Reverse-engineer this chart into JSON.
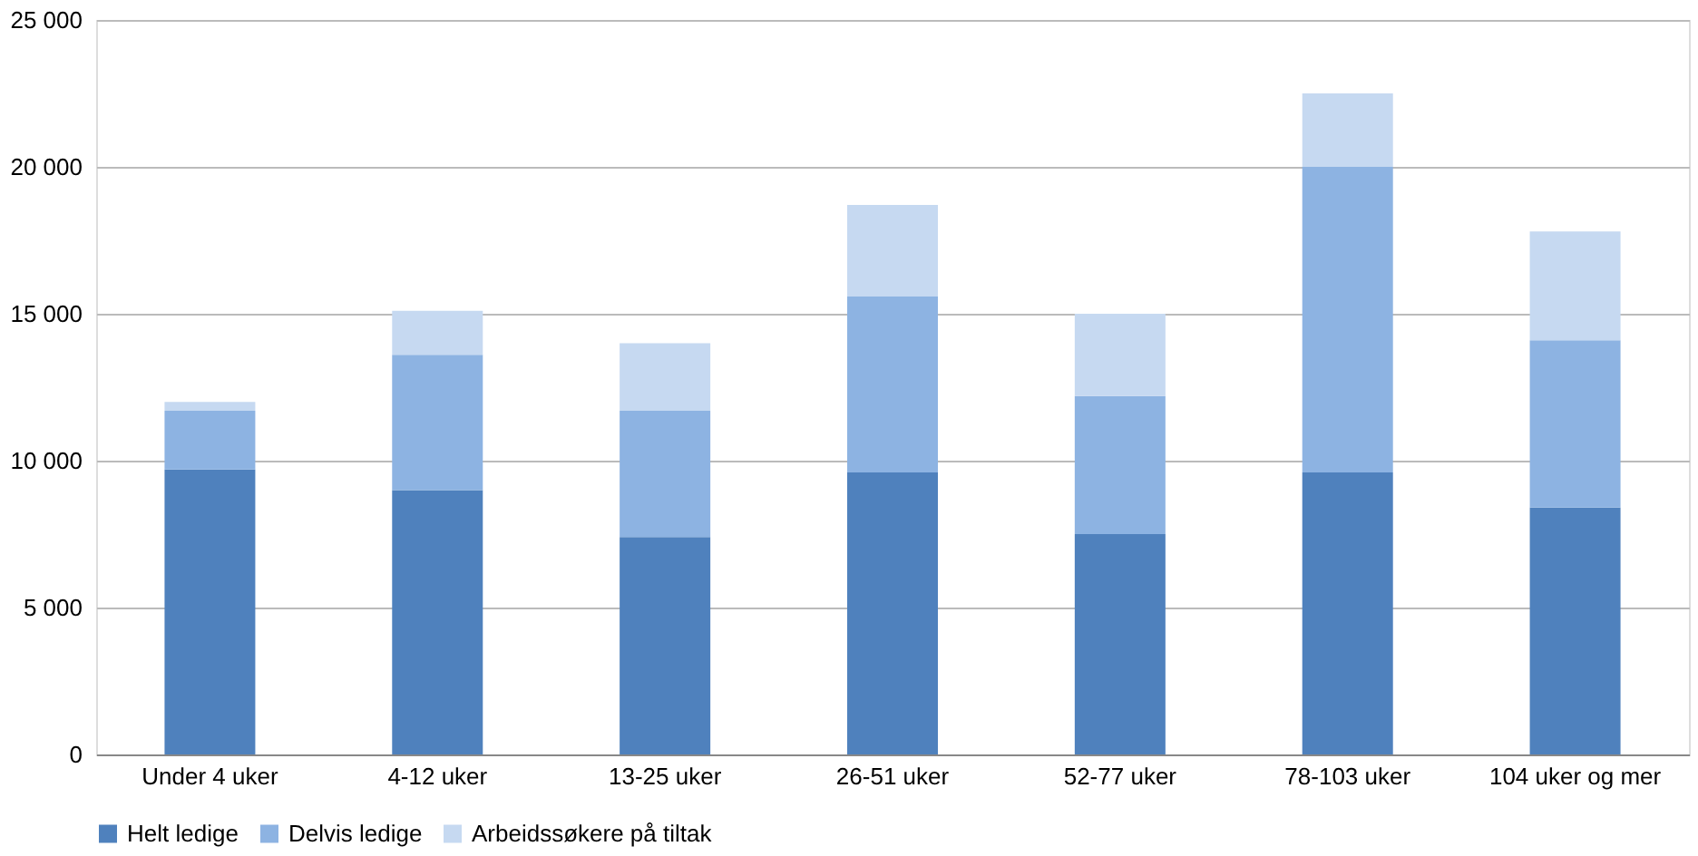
{
  "chart_data": {
    "type": "bar",
    "stacked": true,
    "categories": [
      "Under 4 uker",
      "4-12 uker",
      "13-25 uker",
      "26-51 uker",
      "52-77 uker",
      "78-103 uker",
      "104 uker og mer"
    ],
    "series": [
      {
        "name": "Helt ledige",
        "color": "#4f81bd",
        "values": [
          9700,
          9000,
          7400,
          9600,
          7500,
          9600,
          8400
        ]
      },
      {
        "name": "Delvis ledige",
        "color": "#8db3e2",
        "values": [
          2000,
          4600,
          4300,
          6000,
          4700,
          10400,
          5700
        ]
      },
      {
        "name": "Arbeidssøkere på tiltak",
        "color": "#c6d9f1",
        "values": [
          300,
          1500,
          2300,
          3100,
          2800,
          2500,
          3700
        ]
      }
    ],
    "ylim": [
      0,
      25000
    ],
    "yticks": [
      0,
      {
        "value": 5000,
        "label": "5 000"
      },
      {
        "value": 10000,
        "label": "10 000"
      },
      {
        "value": 15000,
        "label": "15 000"
      },
      {
        "value": 20000,
        "label": "20 000"
      },
      {
        "value": 25000,
        "label": "25 000"
      }
    ],
    "grid": "y",
    "legend": "bottom"
  }
}
